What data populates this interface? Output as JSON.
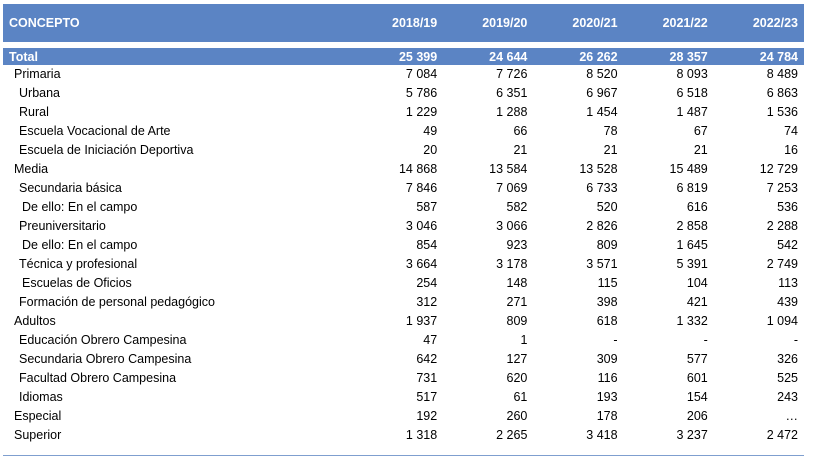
{
  "header": {
    "concept": "CONCEPTO",
    "years": [
      "2018/19",
      "2019/20",
      "2020/21",
      "2021/22",
      "2022/23"
    ]
  },
  "total": {
    "label": "Total",
    "values": [
      "25 399",
      "24 644",
      "26 262",
      "28 357",
      "24 784"
    ]
  },
  "rows": [
    {
      "label": "Primaria",
      "indent": 1,
      "values": [
        "7 084",
        "7 726",
        "8 520",
        "8 093",
        "8 489"
      ]
    },
    {
      "label": "Urbana",
      "indent": 2,
      "values": [
        "5 786",
        "6 351",
        "6 967",
        "6 518",
        "6 863"
      ]
    },
    {
      "label": "Rural",
      "indent": 2,
      "values": [
        "1 229",
        "1 288",
        "1 454",
        "1 487",
        "1 536"
      ]
    },
    {
      "label": "Escuela Vocacional de Arte",
      "indent": 2,
      "values": [
        "49",
        "66",
        "78",
        "67",
        "74"
      ]
    },
    {
      "label": "Escuela de Iniciación Deportiva",
      "indent": 2,
      "values": [
        "20",
        "21",
        "21",
        "21",
        "16"
      ]
    },
    {
      "label": "Media",
      "indent": 1,
      "values": [
        "14 868",
        "13 584",
        "13 528",
        "15 489",
        "12 729"
      ]
    },
    {
      "label": "Secundaria básica",
      "indent": 2,
      "values": [
        "7 846",
        "7 069",
        "6 733",
        "6 819",
        "7 253"
      ]
    },
    {
      "label": "De ello:  En el campo",
      "indent": 3,
      "values": [
        "587",
        "582",
        "520",
        "616",
        "536"
      ]
    },
    {
      "label": "Preuniversitario",
      "indent": 2,
      "values": [
        "3 046",
        "3 066",
        "2 826",
        "2 858",
        "2 288"
      ]
    },
    {
      "label": "De ello:  En el campo",
      "indent": 3,
      "values": [
        "854",
        "923",
        "809",
        "1 645",
        "542"
      ]
    },
    {
      "label": "Técnica y profesional",
      "indent": 2,
      "values": [
        "3 664",
        "3 178",
        "3 571",
        "5 391",
        "2 749"
      ]
    },
    {
      "label": "Escuelas de Oficios",
      "indent": 3,
      "values": [
        "254",
        "148",
        "115",
        "104",
        "113"
      ]
    },
    {
      "label": "Formación de personal pedagógico",
      "indent": 2,
      "values": [
        "312",
        "271",
        "398",
        "421",
        "439"
      ]
    },
    {
      "label": "Adultos",
      "indent": 1,
      "values": [
        "1 937",
        "809",
        "618",
        "1 332",
        "1 094"
      ]
    },
    {
      "label": "Educación Obrero Campesina",
      "indent": 2,
      "values": [
        "47",
        "1",
        "-",
        "-",
        "-"
      ]
    },
    {
      "label": "Secundaria Obrero Campesina",
      "indent": 2,
      "values": [
        "642",
        "127",
        "309",
        "577",
        "326"
      ]
    },
    {
      "label": "Facultad Obrero Campesina",
      "indent": 2,
      "values": [
        "731",
        "620",
        "116",
        "601",
        "525"
      ]
    },
    {
      "label": "Idiomas",
      "indent": 2,
      "values": [
        "517",
        "61",
        "193",
        "154",
        "243"
      ]
    },
    {
      "label": "Especial",
      "indent": 1,
      "values": [
        "192",
        "260",
        "178",
        "206",
        "…"
      ]
    },
    {
      "label": "Superior",
      "indent": 1,
      "values": [
        "1 318",
        "2 265",
        "3 418",
        "3 237",
        "2 472"
      ]
    }
  ],
  "colors": {
    "header_bg": "#5b84c4",
    "header_text": "#ffffff"
  }
}
